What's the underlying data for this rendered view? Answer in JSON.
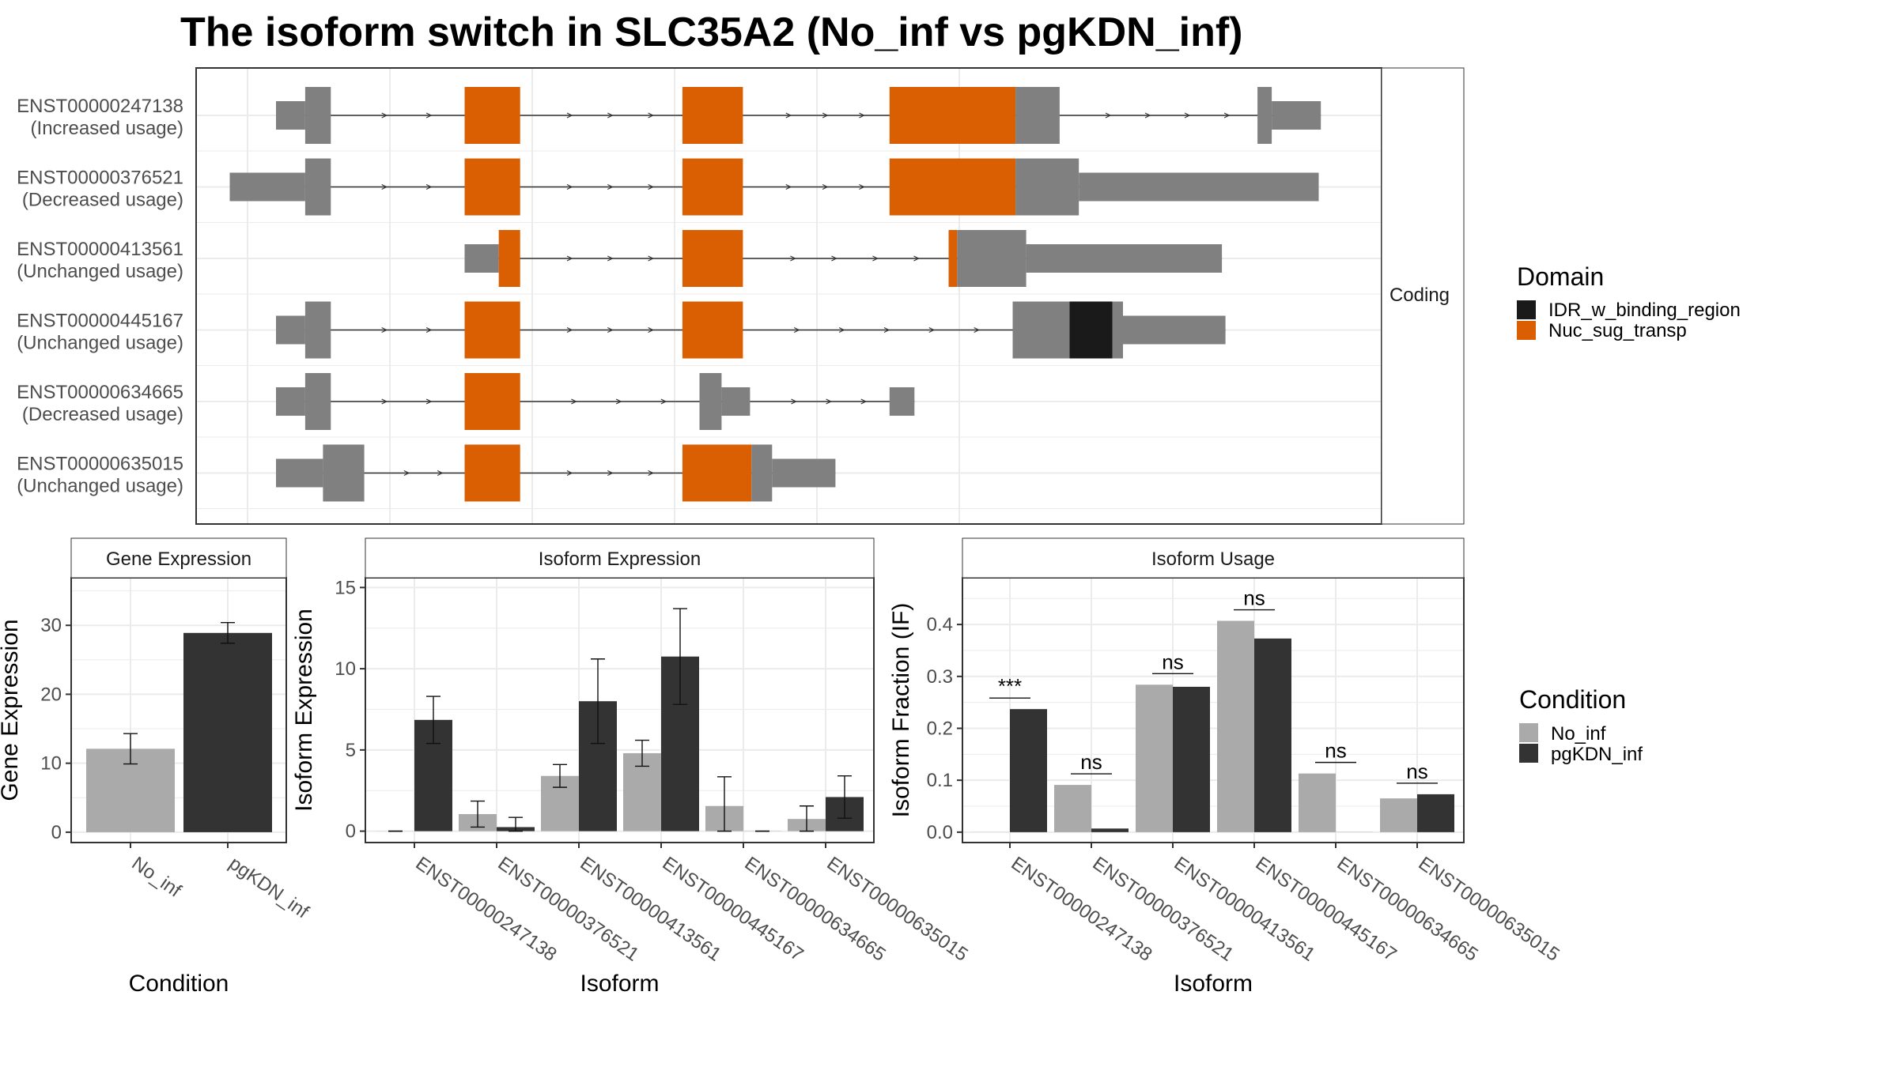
{
  "title": "The isoform switch in SLC35A2 (No_inf vs pgKDN_inf)",
  "colors": {
    "no_inf": "#aaaaaa",
    "pgkdn_inf": "#333333",
    "Nuc_sug_transp": "#d95f02",
    "IDR_w_binding_region": "#1a1a1a",
    "noncoding_exon": "#808080",
    "grid": "#ebebeb",
    "strip": "#ffffff",
    "border": "#333333"
  },
  "legends": {
    "domain": {
      "title": "Domain",
      "items": [
        {
          "label": "IDR_w_binding_region",
          "color_key": "IDR_w_binding_region"
        },
        {
          "label": "Nuc_sug_transp",
          "color_key": "Nuc_sug_transp"
        }
      ]
    },
    "condition": {
      "title": "Condition",
      "items": [
        {
          "label": "No_inf",
          "color_key": "no_inf"
        },
        {
          "label": "pgKDN_inf",
          "color_key": "pgkdn_inf"
        }
      ]
    }
  },
  "chart_data": [
    {
      "type": "gene-structure",
      "facet_label": "Coding",
      "x_range": [
        0,
        1000
      ],
      "vertical_grid": [
        0,
        200,
        400,
        600,
        800,
        1000
      ],
      "isoforms": [
        {
          "id": "ENST00000247138",
          "note": "(Increased usage)",
          "segments": [
            {
              "s": 40,
              "e": 81,
              "kind": "utr"
            },
            {
              "s": 81,
              "e": 117,
              "kind": "cds"
            },
            {
              "s": 305,
              "e": 383,
              "kind": "domain",
              "domain": "Nuc_sug_transp"
            },
            {
              "s": 611,
              "e": 696,
              "kind": "domain",
              "domain": "Nuc_sug_transp"
            },
            {
              "s": 902,
              "e": 1079,
              "kind": "domain",
              "domain": "Nuc_sug_transp"
            },
            {
              "s": 1079,
              "e": 1141,
              "kind": "cds"
            },
            {
              "s": 1419,
              "e": 1439,
              "kind": "cds"
            },
            {
              "s": 1439,
              "e": 1508,
              "kind": "utr"
            }
          ]
        },
        {
          "id": "ENST00000376521",
          "note": "(Decreased usage)",
          "segments": [
            {
              "s": -25,
              "e": 81,
              "kind": "utr"
            },
            {
              "s": 81,
              "e": 117,
              "kind": "cds"
            },
            {
              "s": 305,
              "e": 383,
              "kind": "domain",
              "domain": "Nuc_sug_transp"
            },
            {
              "s": 611,
              "e": 696,
              "kind": "domain",
              "domain": "Nuc_sug_transp"
            },
            {
              "s": 902,
              "e": 1079,
              "kind": "domain",
              "domain": "Nuc_sug_transp"
            },
            {
              "s": 1079,
              "e": 1168,
              "kind": "cds"
            },
            {
              "s": 1168,
              "e": 1505,
              "kind": "utr"
            }
          ]
        },
        {
          "id": "ENST00000413561",
          "note": "(Unchanged usage)",
          "segments": [
            {
              "s": 305,
              "e": 353,
              "kind": "utr"
            },
            {
              "s": 353,
              "e": 383,
              "kind": "domain",
              "domain": "Nuc_sug_transp"
            },
            {
              "s": 611,
              "e": 696,
              "kind": "domain",
              "domain": "Nuc_sug_transp"
            },
            {
              "s": 985,
              "e": 997,
              "kind": "domain",
              "domain": "Nuc_sug_transp"
            },
            {
              "s": 997,
              "e": 1094,
              "kind": "cds"
            },
            {
              "s": 1094,
              "e": 1369,
              "kind": "utr"
            }
          ]
        },
        {
          "id": "ENST00000445167",
          "note": "(Unchanged usage)",
          "segments": [
            {
              "s": 40,
              "e": 81,
              "kind": "utr"
            },
            {
              "s": 81,
              "e": 117,
              "kind": "cds"
            },
            {
              "s": 305,
              "e": 383,
              "kind": "domain",
              "domain": "Nuc_sug_transp"
            },
            {
              "s": 611,
              "e": 696,
              "kind": "domain",
              "domain": "Nuc_sug_transp"
            },
            {
              "s": 1075,
              "e": 1155,
              "kind": "cds"
            },
            {
              "s": 1155,
              "e": 1215,
              "kind": "domain",
              "domain": "IDR_w_binding_region"
            },
            {
              "s": 1215,
              "e": 1230,
              "kind": "cds"
            },
            {
              "s": 1230,
              "e": 1374,
              "kind": "utr"
            }
          ]
        },
        {
          "id": "ENST00000634665",
          "note": "(Decreased usage)",
          "segments": [
            {
              "s": 40,
              "e": 81,
              "kind": "utr"
            },
            {
              "s": 81,
              "e": 117,
              "kind": "cds"
            },
            {
              "s": 305,
              "e": 383,
              "kind": "domain",
              "domain": "Nuc_sug_transp"
            },
            {
              "s": 635,
              "e": 666,
              "kind": "cds"
            },
            {
              "s": 666,
              "e": 706,
              "kind": "utr"
            },
            {
              "s": 902,
              "e": 937,
              "kind": "utr"
            }
          ]
        },
        {
          "id": "ENST00000635015",
          "note": "(Unchanged usage)",
          "segments": [
            {
              "s": 40,
              "e": 106,
              "kind": "utr"
            },
            {
              "s": 106,
              "e": 164,
              "kind": "cds"
            },
            {
              "s": 305,
              "e": 383,
              "kind": "domain",
              "domain": "Nuc_sug_transp"
            },
            {
              "s": 611,
              "e": 708,
              "kind": "domain",
              "domain": "Nuc_sug_transp"
            },
            {
              "s": 708,
              "e": 737,
              "kind": "cds"
            },
            {
              "s": 737,
              "e": 826,
              "kind": "utr"
            }
          ]
        }
      ]
    },
    {
      "type": "bar",
      "strip": "Gene Expression",
      "xlabel": "Condition",
      "ylabel": "Gene Expression",
      "categories": [
        "No_inf",
        "pgKDN_inf"
      ],
      "values": [
        12.1,
        28.9
      ],
      "errors": [
        [
          9.9,
          14.3
        ],
        [
          27.4,
          30.4
        ]
      ],
      "ylim": [
        -1.5,
        36.9
      ],
      "yticks": [
        0,
        10,
        20,
        30
      ],
      "grid": true
    },
    {
      "type": "bar",
      "strip": "Isoform Expression",
      "xlabel": "Isoform",
      "ylabel": "Isoform Expression",
      "categories": [
        "ENST00000247138",
        "ENST00000376521",
        "ENST00000413561",
        "ENST00000445167",
        "ENST00000634665",
        "ENST00000635015"
      ],
      "series": [
        {
          "name": "No_inf",
          "color_key": "no_inf",
          "values": [
            0.0,
            1.05,
            3.4,
            4.8,
            1.55,
            0.75
          ],
          "errors": [
            [
              0.0,
              0.0
            ],
            [
              0.25,
              1.85
            ],
            [
              2.7,
              4.1
            ],
            [
              4.0,
              5.6
            ],
            [
              0.0,
              3.35
            ],
            [
              0.0,
              1.55
            ]
          ]
        },
        {
          "name": "pgKDN_inf",
          "color_key": "pgkdn_inf",
          "values": [
            6.85,
            0.25,
            8.0,
            10.75,
            0.0,
            2.1
          ],
          "errors": [
            [
              5.4,
              8.3
            ],
            [
              0.0,
              0.85
            ],
            [
              5.4,
              10.6
            ],
            [
              7.8,
              13.7
            ],
            [
              0.0,
              0.0
            ],
            [
              0.8,
              3.4
            ]
          ]
        }
      ],
      "ylim": [
        -0.7,
        15.6
      ],
      "yticks": [
        0,
        5,
        10,
        15
      ],
      "grid": true
    },
    {
      "type": "bar",
      "strip": "Isoform Usage",
      "xlabel": "Isoform",
      "ylabel": "Isoform Fraction (IF)",
      "categories": [
        "ENST00000247138",
        "ENST00000376521",
        "ENST00000413561",
        "ENST00000445167",
        "ENST00000634665",
        "ENST00000635015"
      ],
      "series": [
        {
          "name": "No_inf",
          "color_key": "no_inf",
          "values": [
            0.0,
            0.091,
            0.284,
            0.407,
            0.113,
            0.065
          ]
        },
        {
          "name": "pgKDN_inf",
          "color_key": "pgkdn_inf",
          "values": [
            0.237,
            0.007,
            0.28,
            0.373,
            0.0,
            0.073
          ]
        }
      ],
      "significance": [
        "***",
        "ns",
        "ns",
        "ns",
        "ns",
        "ns"
      ],
      "ylim": [
        -0.02,
        0.49
      ],
      "yticks": [
        0.0,
        0.1,
        0.2,
        0.3,
        0.4
      ],
      "ytick_labels": [
        "0.0",
        "0.1",
        "0.2",
        "0.3",
        "0.4"
      ],
      "grid": true
    }
  ]
}
